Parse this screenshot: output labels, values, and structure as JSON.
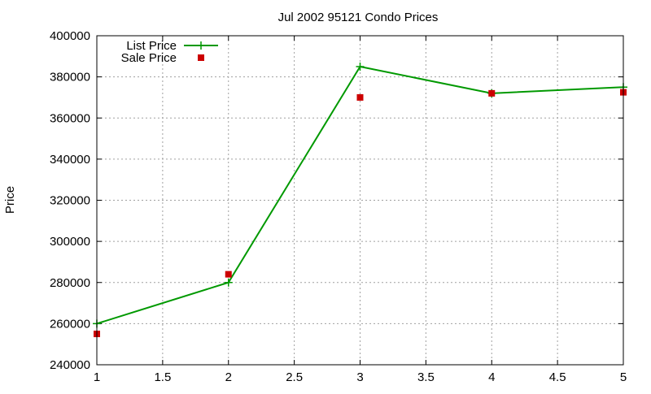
{
  "chart_data": {
    "type": "line",
    "title": "Jul 2002 95121 Condo Prices",
    "xlabel": "",
    "ylabel": "Price",
    "xlim": [
      1,
      5
    ],
    "ylim": [
      240000,
      400000
    ],
    "x_ticks": [
      1,
      1.5,
      2,
      2.5,
      3,
      3.5,
      4,
      4.5,
      5
    ],
    "x_tick_labels": [
      "1",
      "1.5",
      "2",
      "2.5",
      "3",
      "3.5",
      "4",
      "4.5",
      "5"
    ],
    "y_ticks": [
      240000,
      260000,
      280000,
      300000,
      320000,
      340000,
      360000,
      380000,
      400000
    ],
    "y_tick_labels": [
      "240000",
      "260000",
      "280000",
      "300000",
      "320000",
      "340000",
      "360000",
      "380000",
      "400000"
    ],
    "grid": true,
    "legend_position": "top-left",
    "x": [
      1,
      2,
      3,
      4,
      5
    ],
    "series": [
      {
        "name": "List Price",
        "style": "line+cross",
        "color": "#009900",
        "values": [
          260000,
          280000,
          385000,
          372000,
          375000
        ]
      },
      {
        "name": "Sale Price",
        "style": "square-points",
        "color": "#cc0000",
        "values": [
          255000,
          284000,
          370000,
          372000,
          372500
        ]
      }
    ]
  }
}
